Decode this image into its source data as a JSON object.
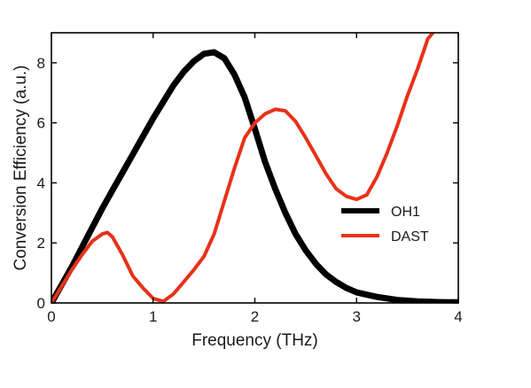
{
  "chart_data": {
    "type": "line",
    "title": "",
    "xlabel": "Frequency (THz)",
    "ylabel": "Conversion Efficiency (a.u.)",
    "xlim": [
      0,
      4
    ],
    "ylim": [
      0,
      9
    ],
    "xticks": [
      "0",
      "1",
      "2",
      "3",
      "4"
    ],
    "yticks": [
      "0",
      "2",
      "4",
      "6",
      "8"
    ],
    "grid": false,
    "legend_position": "right",
    "series": [
      {
        "name": "OH1",
        "color": "#000000",
        "x": [
          0,
          0.1,
          0.2,
          0.3,
          0.4,
          0.5,
          0.6,
          0.7,
          0.8,
          0.9,
          1.0,
          1.1,
          1.2,
          1.3,
          1.4,
          1.5,
          1.6,
          1.7,
          1.8,
          1.9,
          2.0,
          2.1,
          2.2,
          2.3,
          2.4,
          2.5,
          2.6,
          2.7,
          2.8,
          2.9,
          3.0,
          3.2,
          3.4,
          3.6,
          3.8,
          4.0
        ],
        "y": [
          0,
          0.6,
          1.2,
          1.85,
          2.5,
          3.15,
          3.75,
          4.35,
          4.95,
          5.55,
          6.15,
          6.7,
          7.25,
          7.7,
          8.05,
          8.3,
          8.35,
          8.15,
          7.6,
          6.85,
          5.8,
          4.7,
          3.8,
          3.0,
          2.3,
          1.75,
          1.3,
          0.95,
          0.7,
          0.5,
          0.35,
          0.2,
          0.1,
          0.05,
          0.03,
          0.02
        ]
      },
      {
        "name": "DAST",
        "color": "#e8311a",
        "x": [
          0,
          0.1,
          0.2,
          0.3,
          0.4,
          0.5,
          0.55,
          0.6,
          0.7,
          0.8,
          0.9,
          1.0,
          1.1,
          1.2,
          1.3,
          1.4,
          1.5,
          1.6,
          1.7,
          1.8,
          1.9,
          2.0,
          2.1,
          2.2,
          2.3,
          2.4,
          2.5,
          2.6,
          2.7,
          2.8,
          2.9,
          3.0,
          3.1,
          3.2,
          3.3,
          3.4,
          3.5,
          3.6,
          3.7,
          3.75
        ],
        "y": [
          0,
          0.55,
          1.1,
          1.6,
          2.05,
          2.3,
          2.35,
          2.2,
          1.6,
          0.9,
          0.5,
          0.15,
          0.05,
          0.3,
          0.7,
          1.1,
          1.55,
          2.3,
          3.4,
          4.5,
          5.5,
          6.0,
          6.3,
          6.45,
          6.4,
          6.05,
          5.5,
          4.9,
          4.3,
          3.8,
          3.55,
          3.45,
          3.6,
          4.2,
          5.0,
          5.9,
          6.9,
          7.8,
          8.8,
          9.0
        ]
      }
    ]
  }
}
